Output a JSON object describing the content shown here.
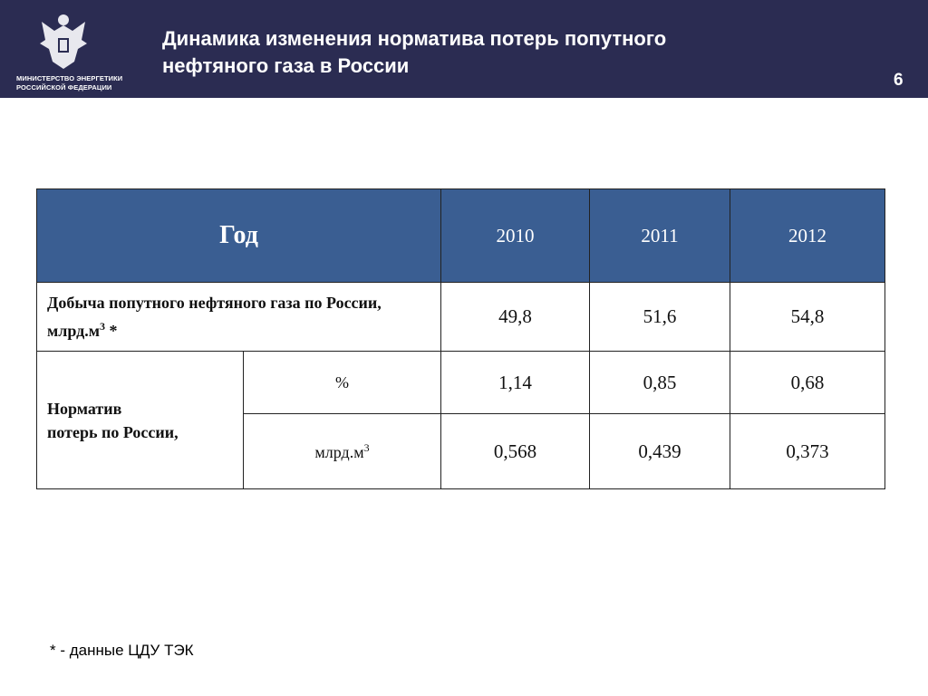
{
  "header": {
    "ministry": [
      "МИНИСТЕРСТВО ЭНЕРГЕТИКИ",
      "РОССИЙСКОЙ ФЕДЕРАЦИИ"
    ],
    "title": [
      "Динамика изменения норматива потерь попутного",
      "нефтяного газа в России"
    ],
    "page": "6"
  },
  "table": {
    "head": "Год",
    "years": [
      "2010",
      "2011",
      "2012"
    ],
    "production": {
      "label": "Добыча попутного нефтяного газа по России, млрд.м",
      "sup": "3",
      "suffix": " *",
      "values": [
        "49,8",
        "51,6",
        "54,8"
      ]
    },
    "norm": {
      "label": [
        "Норматив",
        "потерь по России,"
      ],
      "rows": [
        {
          "unit": "%",
          "values": [
            "1,14",
            "0,85",
            "0,68"
          ]
        },
        {
          "unit": "млрд.м",
          "sup": "3",
          "values": [
            "0,568",
            "0,439",
            "0,373"
          ]
        }
      ]
    }
  },
  "footnote": "* - данные ЦДУ ТЭК"
}
